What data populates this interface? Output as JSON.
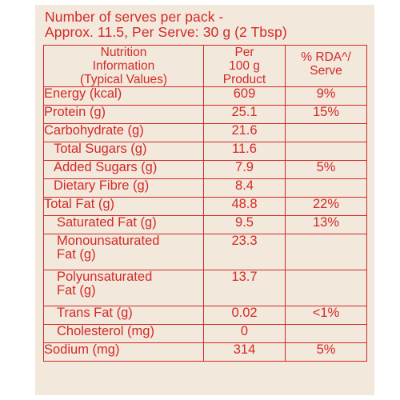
{
  "heading": {
    "line1": "Number of serves per pack -",
    "line2": "Approx. 11.5, Per Serve: 30 g (2 Tbsp)"
  },
  "columns": {
    "col1": [
      "Nutrition",
      "Information",
      "(Typical Values)"
    ],
    "col2": [
      "Per",
      "100 g",
      "Product"
    ],
    "col3": [
      "% RDA^/",
      "Serve"
    ]
  },
  "rows": [
    {
      "label": "Energy (kcal)",
      "per100": "609",
      "rda": "9%"
    },
    {
      "label": "Protein (g)",
      "per100": "25.1",
      "rda": "15%"
    },
    {
      "label": "Carbohydrate (g)",
      "per100": "21.6",
      "rda": ""
    },
    {
      "label": "Total Sugars (g)",
      "per100": "11.6",
      "rda": ""
    },
    {
      "label": "Added Sugars (g)",
      "per100": "7.9",
      "rda": "5%"
    },
    {
      "label": "Dietary Fibre (g)",
      "per100": "8.4",
      "rda": ""
    },
    {
      "label": "Total Fat (g)",
      "per100": "48.8",
      "rda": "22%"
    },
    {
      "label": "Saturated Fat (g)",
      "per100": "9.5",
      "rda": "13%"
    },
    {
      "label_lines": [
        "Monounsaturated",
        "Fat (g)"
      ],
      "per100": "23.3",
      "rda": ""
    },
    {
      "label_lines": [
        "Polyunsaturated",
        "Fat (g)"
      ],
      "per100": "13.7",
      "rda": ""
    },
    {
      "label": "Trans Fat (g)",
      "per100": "0.02",
      "rda": "<1%"
    },
    {
      "label": "Cholesterol (mg)",
      "per100": "0",
      "rda": ""
    },
    {
      "label": "Sodium (mg)",
      "per100": "314",
      "rda": "5%"
    }
  ]
}
